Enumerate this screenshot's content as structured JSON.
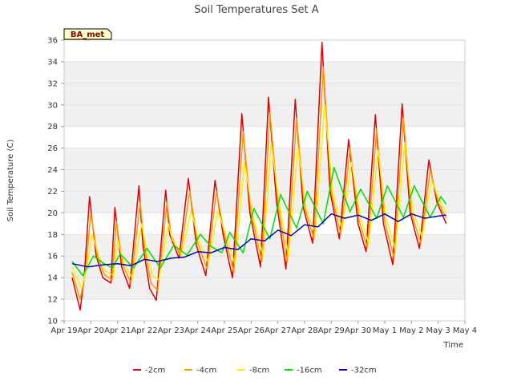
{
  "chart_data": {
    "type": "line",
    "title": "Soil Temperatures Set A",
    "xlabel": "Time",
    "ylabel": "Soil Temperature (C)",
    "ylim": [
      10,
      36
    ],
    "yticks": [
      10,
      12,
      14,
      16,
      18,
      20,
      22,
      24,
      26,
      28,
      30,
      32,
      34,
      36
    ],
    "xlim": [
      0,
      15
    ],
    "xticks": [
      0,
      1,
      2,
      3,
      4,
      5,
      6,
      7,
      8,
      9,
      10,
      11,
      12,
      13,
      14,
      15
    ],
    "xtick_labels": [
      "Apr 19",
      "Apr 20",
      "Apr 21",
      "Apr 22",
      "Apr 23",
      "Apr 24",
      "Apr 25",
      "Apr 26",
      "Apr 27",
      "Apr 28",
      "Apr 29",
      "Apr 30",
      "May 1",
      "May 2",
      "May 3",
      "May 4"
    ],
    "grid": "horizontal bands",
    "legend_position": "bottom",
    "badge": "BA_met",
    "series": [
      {
        "name": "-2cm",
        "color": "#dd0000",
        "x": [
          0.3,
          0.6,
          0.75,
          0.95,
          1.2,
          1.45,
          1.75,
          1.9,
          2.15,
          2.45,
          2.8,
          2.95,
          3.2,
          3.45,
          3.8,
          3.95,
          4.3,
          4.65,
          4.95,
          5.3,
          5.65,
          5.95,
          6.3,
          6.65,
          6.95,
          7.35,
          7.65,
          7.95,
          8.3,
          8.65,
          8.95,
          9.3,
          9.65,
          9.95,
          10.3,
          10.65,
          11.0,
          11.3,
          11.65,
          11.95,
          12.3,
          12.65,
          12.95,
          13.3,
          13.65,
          13.95,
          14.3
        ],
        "y": [
          14.0,
          11.0,
          14.0,
          21.5,
          16.0,
          14.0,
          13.5,
          20.5,
          15.0,
          13.0,
          22.5,
          17.0,
          13.0,
          11.9,
          22.1,
          18.0,
          15.8,
          23.2,
          17.0,
          14.2,
          23.0,
          18.0,
          14.0,
          29.2,
          20.0,
          15.0,
          30.7,
          21.0,
          14.8,
          30.5,
          20.5,
          17.2,
          35.8,
          22.0,
          17.6,
          26.8,
          19.0,
          16.4,
          29.1,
          19.0,
          15.2,
          30.1,
          20.0,
          16.7,
          24.9,
          21.0,
          19.0
        ]
      },
      {
        "name": "-4cm",
        "color": "#ff9900",
        "x": [
          0.3,
          0.6,
          0.8,
          1.0,
          1.25,
          1.5,
          1.8,
          1.95,
          2.2,
          2.5,
          2.85,
          3.0,
          3.25,
          3.5,
          3.85,
          4.0,
          4.35,
          4.7,
          5.0,
          5.35,
          5.7,
          6.0,
          6.35,
          6.7,
          7.0,
          7.4,
          7.7,
          8.0,
          8.35,
          8.7,
          9.0,
          9.35,
          9.7,
          10.0,
          10.35,
          10.7,
          11.05,
          11.35,
          11.7,
          12.0,
          12.35,
          12.7,
          13.0,
          13.35,
          13.7,
          14.0,
          14.3
        ],
        "y": [
          14.5,
          12.0,
          14.5,
          20.0,
          16.0,
          14.3,
          13.8,
          19.2,
          15.2,
          13.5,
          21.0,
          17.0,
          13.5,
          12.8,
          21.0,
          18.0,
          16.0,
          22.0,
          17.2,
          14.8,
          22.0,
          18.0,
          14.5,
          27.5,
          20.0,
          15.5,
          29.3,
          21.0,
          15.4,
          28.8,
          20.5,
          17.6,
          33.5,
          22.0,
          18.0,
          26.0,
          19.2,
          16.8,
          27.8,
          19.2,
          15.8,
          28.8,
          20.0,
          17.2,
          24.0,
          21.0,
          19.5
        ]
      },
      {
        "name": "-8cm",
        "color": "#ffee00",
        "x": [
          0.3,
          0.65,
          0.85,
          1.05,
          1.3,
          1.55,
          1.85,
          2.0,
          2.25,
          2.55,
          2.9,
          3.05,
          3.3,
          3.55,
          3.9,
          4.05,
          4.4,
          4.75,
          5.05,
          5.4,
          5.75,
          6.05,
          6.4,
          6.75,
          7.05,
          7.45,
          7.75,
          8.05,
          8.4,
          8.75,
          9.05,
          9.4,
          9.75,
          10.05,
          10.4,
          10.75,
          11.1,
          11.4,
          11.75,
          12.05,
          12.4,
          12.75,
          13.05,
          13.4,
          13.75,
          14.05,
          14.3
        ],
        "y": [
          15.0,
          13.0,
          15.0,
          18.0,
          16.0,
          14.6,
          14.2,
          17.5,
          15.3,
          14.0,
          19.0,
          17.0,
          14.2,
          13.8,
          19.0,
          17.5,
          16.2,
          20.2,
          17.4,
          15.4,
          20.2,
          18.0,
          15.2,
          24.7,
          20.0,
          16.0,
          26.4,
          21.0,
          16.0,
          26.1,
          20.5,
          18.0,
          30.0,
          22.0,
          18.4,
          24.7,
          19.5,
          17.2,
          25.8,
          19.5,
          16.6,
          26.5,
          20.2,
          17.8,
          23.0,
          21.2,
          20.0
        ]
      },
      {
        "name": "-16cm",
        "color": "#00dd00",
        "x": [
          0.3,
          0.7,
          1.1,
          1.5,
          1.8,
          2.1,
          2.6,
          3.1,
          3.6,
          4.1,
          4.6,
          5.1,
          5.5,
          5.9,
          6.2,
          6.7,
          7.1,
          7.7,
          8.1,
          8.7,
          9.1,
          9.7,
          10.1,
          10.7,
          11.1,
          11.7,
          12.1,
          12.7,
          13.1,
          13.7,
          14.1,
          14.3
        ],
        "y": [
          15.5,
          14.2,
          16.0,
          15.3,
          14.9,
          16.2,
          14.9,
          16.7,
          14.9,
          17.0,
          16.1,
          18.0,
          16.9,
          16.3,
          18.2,
          16.3,
          20.4,
          17.6,
          21.7,
          18.6,
          22.0,
          19.0,
          24.2,
          20.1,
          22.2,
          19.5,
          22.5,
          19.6,
          22.5,
          19.6,
          21.5,
          20.8
        ]
      },
      {
        "name": "-32cm",
        "color": "#0000cc",
        "x": [
          0.3,
          0.9,
          1.5,
          2.0,
          2.5,
          3.0,
          3.5,
          4.0,
          4.5,
          5.0,
          5.5,
          6.0,
          6.5,
          7.0,
          7.5,
          8.0,
          8.5,
          9.0,
          9.5,
          10.0,
          10.5,
          11.0,
          11.5,
          12.0,
          12.5,
          13.0,
          13.5,
          14.0,
          14.3
        ],
        "y": [
          15.3,
          15.0,
          15.2,
          15.3,
          15.1,
          15.7,
          15.5,
          15.8,
          15.9,
          16.4,
          16.3,
          16.8,
          16.6,
          17.6,
          17.4,
          18.4,
          17.9,
          18.9,
          18.7,
          19.9,
          19.5,
          19.8,
          19.3,
          19.9,
          19.2,
          19.9,
          19.5,
          19.7,
          19.8
        ]
      }
    ]
  }
}
